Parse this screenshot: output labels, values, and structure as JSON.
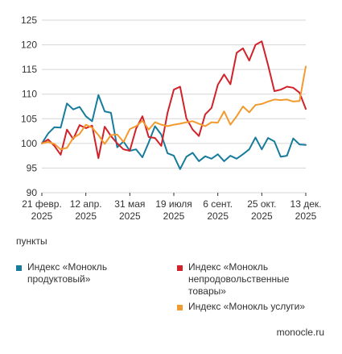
{
  "colors": {
    "s1": "#177c9c",
    "s2": "#d1222a",
    "s3": "#f29a2e",
    "grid": "#d6d6d6"
  },
  "unit_label": "пункты",
  "credit": "monocle.ru",
  "chart_data": {
    "type": "line",
    "ylim": [
      90,
      125
    ],
    "yticks": [
      90,
      95,
      100,
      105,
      110,
      115,
      120,
      125
    ],
    "x_count": 43,
    "xticks": [
      {
        "index": 0,
        "label": "21 февр.",
        "label2": "2025"
      },
      {
        "index": 7,
        "label": "12 апр.",
        "label2": "2025"
      },
      {
        "index": 14,
        "label": "31 мая",
        "label2": "2025"
      },
      {
        "index": 21,
        "label": "19 июля",
        "label2": "2025"
      },
      {
        "index": 28,
        "label": "6 сент.",
        "label2": "2025"
      },
      {
        "index": 35,
        "label": "25 окт.",
        "label2": "2025"
      },
      {
        "index": 42,
        "label": "13 дек.",
        "label2": "2025"
      }
    ],
    "grid": true,
    "legend_position": "bottom",
    "series": [
      {
        "name": "Индекс «Монокль\nпродуктовый»",
        "values": [
          100,
          102,
          103.3,
          103.2,
          108.1,
          106.9,
          107.4,
          105.5,
          104.5,
          109.8,
          106.5,
          106.2,
          99.2,
          100.4,
          98.5,
          98.8,
          97.2,
          100.2,
          103.5,
          101.8,
          98,
          97.5,
          94.8,
          97.3,
          98.1,
          96.4,
          97.4,
          96.9,
          97.8,
          96.4,
          97.5,
          96.9,
          97.8,
          98.8,
          101.2,
          98.8,
          101.1,
          100.4,
          97.3,
          97.5,
          101,
          99.8,
          99.7
        ]
      },
      {
        "name": "Индекс «Монокль\nнепродовольственные\nтовары»",
        "values": [
          100,
          100.8,
          99.5,
          97.7,
          102.8,
          100.9,
          103.7,
          103.1,
          103.6,
          97,
          103.4,
          101.5,
          100,
          98.8,
          98.5,
          103,
          105.5,
          101.3,
          101.1,
          99.5,
          106.2,
          110.9,
          111.5,
          105.1,
          102.8,
          101.5,
          105.9,
          107.2,
          111.9,
          114,
          112,
          118.4,
          119.3,
          116.8,
          120,
          120.7,
          115.9,
          110.6,
          110.9,
          111.5,
          111.3,
          110.3,
          107
        ]
      },
      {
        "name": "Индекс «Монокль услуги»",
        "values": [
          100,
          100.3,
          99.9,
          98.8,
          99.1,
          101.1,
          101.9,
          103.8,
          103.2,
          101.7,
          99.9,
          101.7,
          101.8,
          100.3,
          102.9,
          103.5,
          104.6,
          102.8,
          104.3,
          103.8,
          103.5,
          103.8,
          104,
          104.3,
          104.5,
          104,
          103.5,
          104.3,
          104.2,
          106.5,
          103.8,
          105.5,
          107.5,
          106.3,
          107.8,
          108,
          108.5,
          108.9,
          108.8,
          108.9,
          108.5,
          108.6,
          115.6
        ]
      }
    ]
  }
}
